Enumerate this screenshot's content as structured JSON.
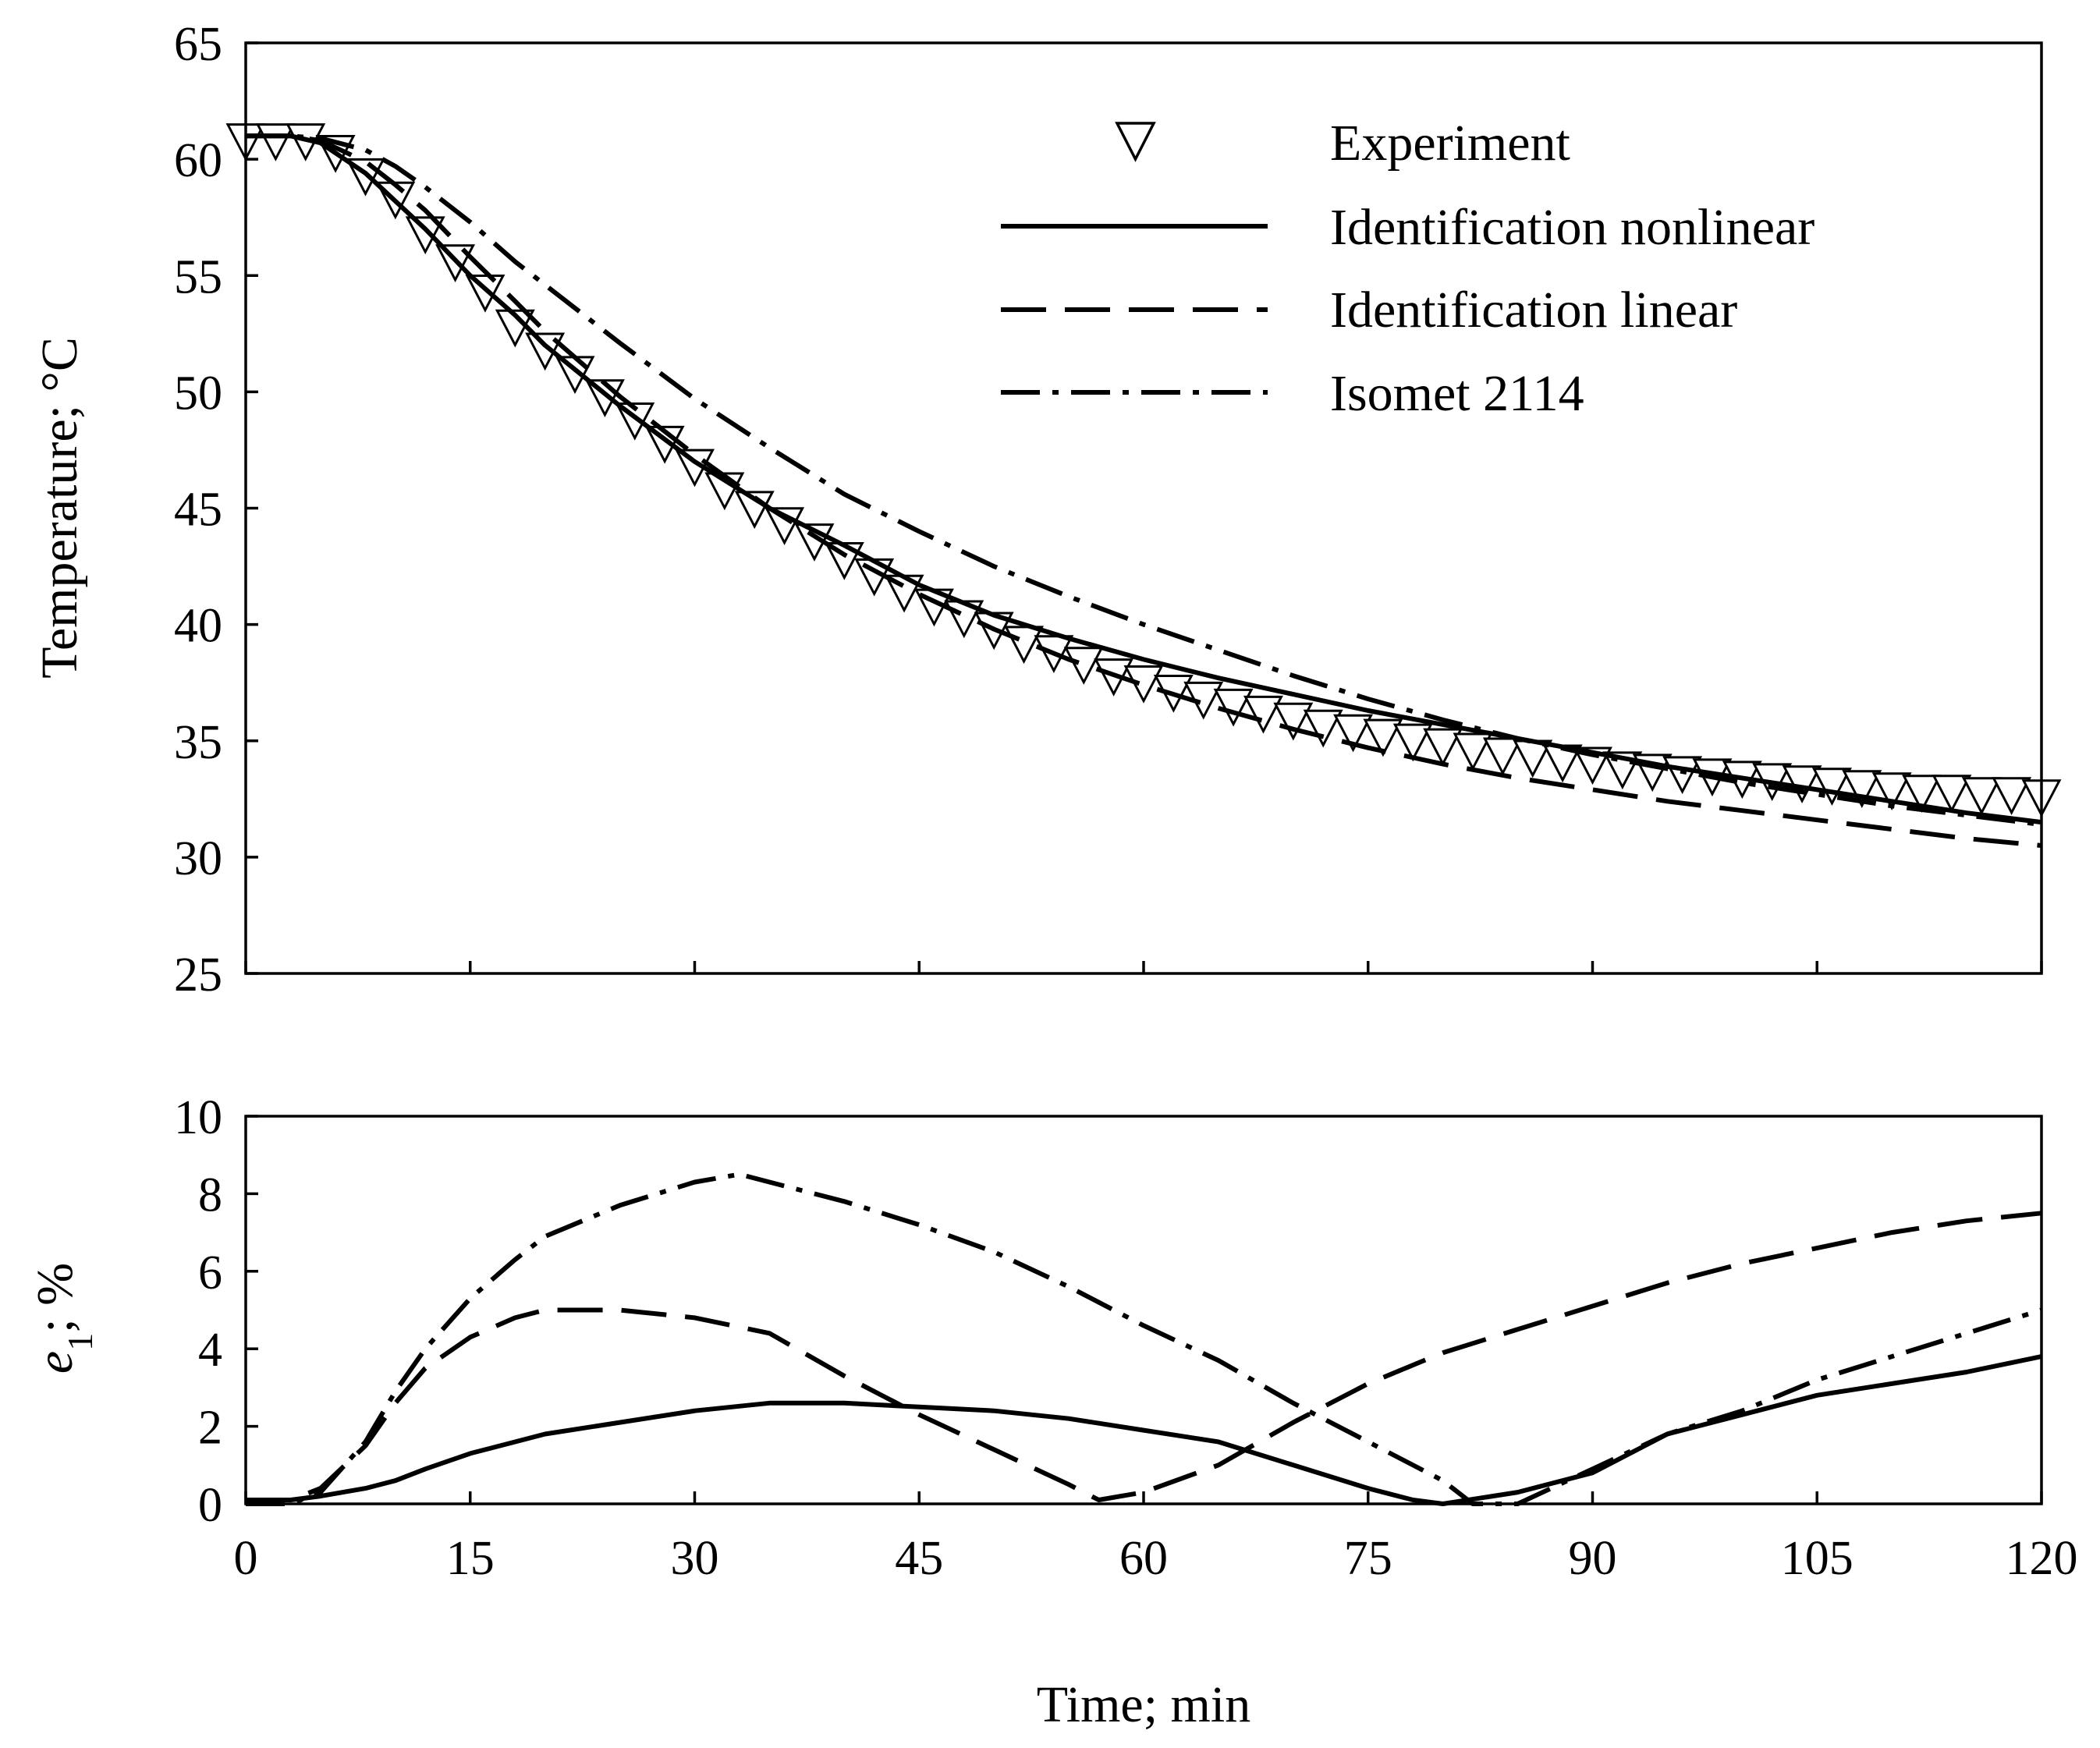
{
  "chart_data": [
    {
      "type": "line",
      "panel": "top",
      "title": "",
      "xlabel": "",
      "ylabel": "Temperature; °C",
      "xlim": [
        0,
        120
      ],
      "ylim": [
        25,
        65
      ],
      "xticks": [
        0,
        15,
        30,
        45,
        60,
        75,
        90,
        105,
        120
      ],
      "yticks": [
        25,
        30,
        35,
        40,
        45,
        50,
        55,
        60,
        65
      ],
      "ytick_labels": [
        "25",
        "30",
        "35",
        "40",
        "45",
        "50",
        "55",
        "60",
        "65"
      ],
      "legend_position": "top-right",
      "series": [
        {
          "name": "Experiment",
          "style": "markers-triangle-down",
          "x": [
            0,
            2,
            4,
            6,
            8,
            10,
            12,
            14,
            16,
            18,
            20,
            22,
            24,
            26,
            28,
            30,
            32,
            34,
            36,
            38,
            40,
            42,
            44,
            46,
            48,
            50,
            52,
            54,
            56,
            58,
            60,
            62,
            64,
            66,
            68,
            70,
            72,
            74,
            76,
            78,
            80,
            82,
            84,
            86,
            88,
            90,
            92,
            94,
            96,
            98,
            100,
            102,
            104,
            106,
            108,
            110,
            112,
            114,
            116,
            118,
            120
          ],
          "values": [
            61.0,
            61.0,
            61.0,
            60.5,
            59.5,
            58.5,
            57.0,
            55.8,
            54.5,
            53.0,
            52.0,
            51.0,
            50.0,
            49.0,
            48.0,
            47.0,
            46.0,
            45.2,
            44.5,
            43.8,
            43.0,
            42.3,
            41.6,
            41.0,
            40.5,
            40.0,
            39.4,
            39.0,
            38.5,
            38.0,
            37.7,
            37.3,
            37.0,
            36.7,
            36.4,
            36.1,
            35.8,
            35.6,
            35.4,
            35.2,
            35.0,
            34.8,
            34.6,
            34.5,
            34.3,
            34.2,
            34.0,
            33.9,
            33.8,
            33.7,
            33.6,
            33.5,
            33.4,
            33.3,
            33.2,
            33.1,
            33.0,
            33.0,
            32.9,
            32.9,
            32.8
          ]
        },
        {
          "name": "Identification nonlinear",
          "style": "solid",
          "x": [
            0,
            3,
            5,
            8,
            10,
            12,
            15,
            18,
            20,
            25,
            30,
            35,
            40,
            45,
            50,
            55,
            60,
            65,
            70,
            75,
            80,
            85,
            90,
            95,
            100,
            105,
            110,
            115,
            120
          ],
          "values": [
            61.0,
            61.0,
            60.7,
            59.4,
            58.2,
            57.0,
            55.0,
            53.3,
            52.0,
            49.4,
            47.0,
            45.0,
            43.4,
            41.7,
            40.4,
            39.4,
            38.5,
            37.7,
            37.0,
            36.3,
            35.7,
            35.1,
            34.5,
            33.9,
            33.4,
            32.9,
            32.4,
            31.9,
            31.5
          ]
        },
        {
          "name": "Identification linear",
          "style": "dashed",
          "x": [
            0,
            3,
            5,
            8,
            10,
            12,
            15,
            18,
            20,
            25,
            30,
            35,
            40,
            45,
            50,
            55,
            60,
            65,
            70,
            75,
            80,
            85,
            90,
            95,
            100,
            105,
            110,
            115,
            120
          ],
          "values": [
            61.0,
            61.0,
            60.8,
            59.9,
            58.9,
            57.8,
            55.8,
            53.9,
            52.6,
            49.8,
            47.3,
            45.0,
            43.0,
            41.3,
            39.8,
            38.5,
            37.4,
            36.4,
            35.5,
            34.7,
            34.0,
            33.4,
            32.9,
            32.4,
            32.0,
            31.6,
            31.2,
            30.8,
            30.5
          ]
        },
        {
          "name": "Isomet 2114",
          "style": "dash-dot",
          "x": [
            0,
            3,
            5,
            8,
            10,
            12,
            15,
            18,
            20,
            25,
            30,
            35,
            40,
            45,
            50,
            55,
            60,
            65,
            70,
            75,
            80,
            85,
            90,
            95,
            100,
            105,
            110,
            115,
            120
          ],
          "values": [
            61.0,
            61.0,
            60.9,
            60.4,
            59.7,
            58.8,
            57.3,
            55.6,
            54.6,
            52.1,
            49.7,
            47.6,
            45.6,
            44.0,
            42.5,
            41.2,
            40.0,
            38.9,
            37.8,
            36.8,
            35.9,
            35.1,
            34.4,
            33.8,
            33.2,
            32.7,
            32.2,
            31.8,
            31.4
          ]
        }
      ]
    },
    {
      "type": "line",
      "panel": "bottom",
      "title": "",
      "xlabel": "Time; min",
      "ylabel_main": "e",
      "ylabel_sub": "1",
      "ylabel_rest": "; %",
      "xlim": [
        0,
        120
      ],
      "ylim": [
        0,
        10
      ],
      "xticks": [
        0,
        15,
        30,
        45,
        60,
        75,
        90,
        105,
        120
      ],
      "xtick_labels": [
        "0",
        "15",
        "30",
        "45",
        "60",
        "75",
        "90",
        "105",
        "120"
      ],
      "yticks": [
        0,
        2,
        4,
        6,
        8,
        10
      ],
      "ytick_labels": [
        "0",
        "2",
        "4",
        "6",
        "8",
        "10"
      ],
      "series": [
        {
          "name": "Identification nonlinear",
          "style": "solid",
          "x": [
            0,
            3,
            5,
            8,
            10,
            12,
            15,
            18,
            20,
            25,
            30,
            35,
            40,
            45,
            50,
            55,
            60,
            65,
            70,
            75,
            78,
            80,
            85,
            90,
            95,
            100,
            105,
            110,
            115,
            120
          ],
          "values": [
            0.1,
            0.1,
            0.2,
            0.4,
            0.6,
            0.9,
            1.3,
            1.6,
            1.8,
            2.1,
            2.4,
            2.6,
            2.6,
            2.5,
            2.4,
            2.2,
            1.9,
            1.6,
            1.0,
            0.4,
            0.1,
            0.0,
            0.3,
            0.8,
            1.8,
            2.3,
            2.8,
            3.1,
            3.4,
            3.8
          ]
        },
        {
          "name": "Identification linear",
          "style": "dashed",
          "x": [
            0,
            3,
            5,
            8,
            10,
            12,
            15,
            18,
            20,
            25,
            30,
            35,
            40,
            45,
            50,
            55,
            57,
            60,
            65,
            70,
            75,
            80,
            85,
            90,
            95,
            100,
            105,
            110,
            115,
            120
          ],
          "values": [
            0.1,
            0.1,
            0.4,
            1.5,
            2.6,
            3.5,
            4.3,
            4.8,
            5.0,
            5.0,
            4.8,
            4.4,
            3.3,
            2.3,
            1.4,
            0.5,
            0.1,
            0.3,
            1.0,
            2.1,
            3.1,
            3.9,
            4.5,
            5.1,
            5.7,
            6.2,
            6.6,
            7.0,
            7.3,
            7.5
          ]
        },
        {
          "name": "Isomet 2114",
          "style": "dash-dot",
          "x": [
            0,
            3,
            5,
            8,
            10,
            12,
            15,
            18,
            20,
            25,
            30,
            33,
            35,
            40,
            45,
            50,
            55,
            60,
            65,
            70,
            75,
            80,
            82,
            85,
            90,
            95,
            100,
            105,
            110,
            115,
            120
          ],
          "values": [
            0.0,
            0.0,
            0.3,
            1.6,
            2.9,
            4.0,
            5.3,
            6.3,
            6.9,
            7.7,
            8.3,
            8.5,
            8.3,
            7.8,
            7.2,
            6.5,
            5.6,
            4.6,
            3.7,
            2.6,
            1.6,
            0.6,
            0.0,
            0.0,
            0.9,
            1.8,
            2.4,
            3.2,
            3.8,
            4.4,
            5.0
          ]
        }
      ]
    }
  ]
}
